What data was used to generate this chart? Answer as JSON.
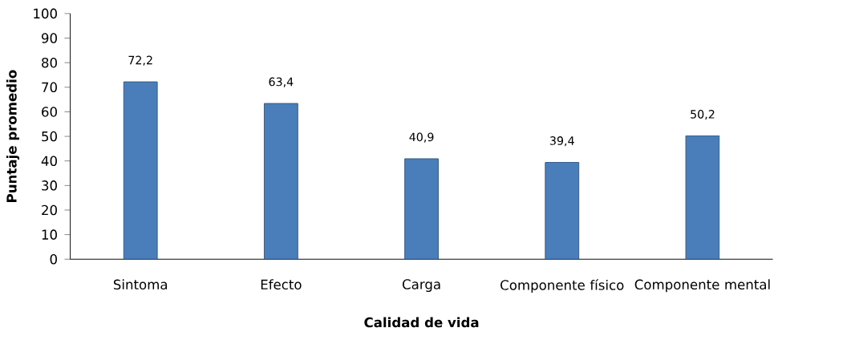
{
  "chart_data": {
    "type": "bar",
    "xlabel": "Calidad de vida",
    "ylabel": "Puntaje promedio",
    "categories": [
      "Sintoma",
      "Efecto",
      "Carga",
      "Componente físico",
      "Componente mental"
    ],
    "values": [
      72.2,
      63.4,
      40.9,
      39.4,
      50.2
    ],
    "value_labels": [
      "72,2",
      "63,4",
      "40,9",
      "39,4",
      "50,2"
    ],
    "color": "#4a7ebb",
    "ylim": [
      0,
      100
    ],
    "yticks": [
      0,
      10,
      20,
      30,
      40,
      50,
      60,
      70,
      80,
      90,
      100
    ],
    "grid": false
  }
}
